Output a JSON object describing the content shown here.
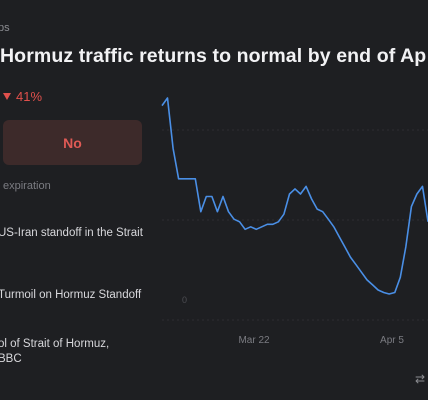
{
  "header": {
    "breadcrumb": "ps",
    "title": "Hormuz traffic returns to normal by end of Ap"
  },
  "market": {
    "change": "41%",
    "no_label": "No",
    "expiration": "expiration"
  },
  "news": [
    "US-Iran standoff in the Strait",
    "Turmoil on Hormuz Standoff",
    "ol of Strait of Hormuz,",
    "BBC"
  ],
  "icons": {
    "change_direction": "down-triangle-icon",
    "footer": "repeat-icon"
  },
  "colors": {
    "line": "#4a8fe6",
    "down": "#e0504c",
    "no_bg": "#3d2a2a"
  },
  "chart_data": {
    "type": "line",
    "x_ticks": [
      "Mar 22",
      "Apr 5"
    ],
    "y_label_partial": "0",
    "series": [
      {
        "values": [
          90,
          93,
          73,
          61,
          61,
          61,
          61,
          48,
          54,
          54,
          48,
          54,
          48,
          45,
          44,
          41,
          42,
          41,
          42,
          43,
          43,
          44,
          47,
          55,
          57,
          55,
          58,
          53,
          49,
          48,
          45,
          42,
          38,
          34,
          30,
          27,
          24,
          21,
          19,
          17,
          16,
          15.4,
          16,
          22,
          34,
          50,
          55,
          58,
          44
        ]
      }
    ]
  }
}
